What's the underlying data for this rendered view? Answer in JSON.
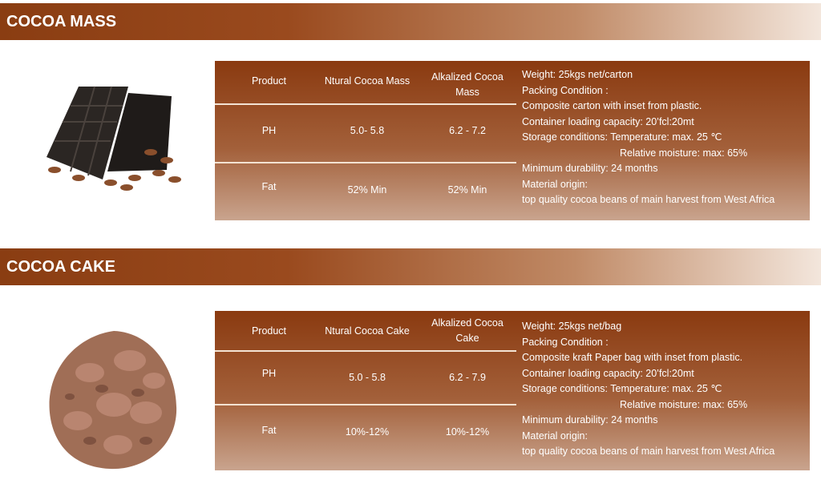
{
  "sections": [
    {
      "title": "COCOA MASS",
      "image": "chocolate-bar-with-cocoa-beans",
      "table": {
        "headers": [
          "Product",
          "Ntural Cocoa Mass",
          "Alkalized Cocoa Mass"
        ],
        "rows": [
          [
            "PH",
            "5.0- 5.8",
            "6.2 - 7.2"
          ],
          [
            "Fat",
            "52% Min",
            "52% Min"
          ]
        ]
      },
      "info": [
        "Weight: 25kgs net/carton",
        "Packing Condition :",
        "Composite carton with inset from plastic.",
        "Container loading capacity: 20’fcl:20mt",
        "Storage conditions: Temperature: max. 25 ℃",
        "Relative moisture: max: 65%",
        "Minimum durability: 24 months",
        "Material origin:",
        "top quality cocoa beans of main harvest from West Africa"
      ]
    },
    {
      "title": "COCOA CAKE",
      "image": "cocoa-cake-pile",
      "table": {
        "headers": [
          "Product",
          "Ntural Cocoa Cake",
          "Alkalized Cocoa Cake"
        ],
        "rows": [
          [
            "PH",
            "5.0 - 5.8",
            "6.2 - 7.9"
          ],
          [
            "Fat",
            "10%-12%",
            "10%-12%"
          ]
        ]
      },
      "info": [
        "Weight: 25kgs net/bag",
        "Packing Condition :",
        "Composite kraft Paper bag with inset from plastic.",
        "Container loading capacity: 20’fcl:20mt",
        "Storage conditions: Temperature: max. 25 ℃",
        "Relative moisture: max: 65%",
        "Minimum durability: 24 months",
        "Material origin:",
        "top quality cocoa beans of main harvest from West Africa"
      ]
    }
  ],
  "colors": {
    "header_dark": "#8a3d12",
    "panel_top": "#8a3a10",
    "panel_bottom": "#c9a48e"
  }
}
